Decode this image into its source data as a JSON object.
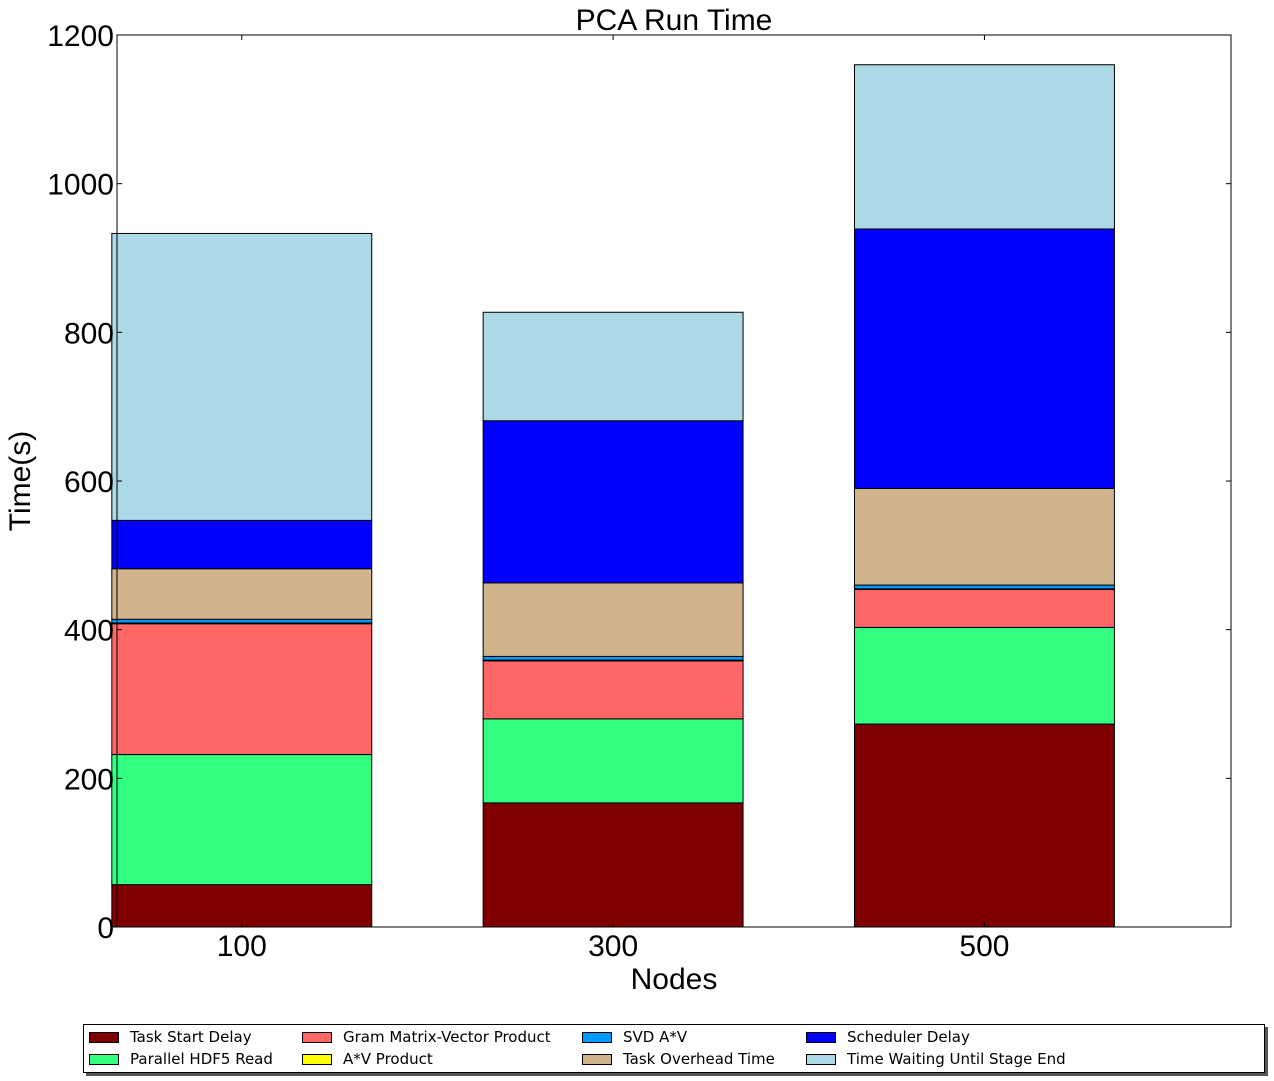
{
  "chart_data": {
    "type": "bar",
    "stacked": true,
    "title": "PCA Run Time",
    "xlabel": "Nodes",
    "ylabel": "Time(s)",
    "ylim": [
      0,
      1200
    ],
    "yticks": [
      0,
      200,
      400,
      600,
      800,
      1000,
      1200
    ],
    "categories": [
      "100",
      "300",
      "500"
    ],
    "series": [
      {
        "name": "Task Start Delay",
        "color": "#800000",
        "values": [
          57,
          167,
          273
        ]
      },
      {
        "name": "Parallel HDF5 Read",
        "color": "#33ff80",
        "values": [
          175,
          113,
          130
        ]
      },
      {
        "name": "Gram Matrix-Vector Product",
        "color": "#ff6666",
        "values": [
          176,
          78,
          51
        ]
      },
      {
        "name": "A*V Product",
        "color": "#ffff00",
        "values": [
          1,
          1,
          1
        ]
      },
      {
        "name": "SVD A*V",
        "color": "#0099ff",
        "values": [
          5,
          5,
          5
        ]
      },
      {
        "name": "Task Overhead Time",
        "color": "#d2b48c",
        "values": [
          68,
          99,
          130
        ]
      },
      {
        "name": "Scheduler Delay",
        "color": "#0000ff",
        "values": [
          65,
          218,
          349
        ]
      },
      {
        "name": "Time Waiting Until Stage End",
        "color": "#add8e6",
        "values": [
          386,
          146,
          221
        ]
      }
    ],
    "legend_position": "bottom",
    "grid": false
  }
}
